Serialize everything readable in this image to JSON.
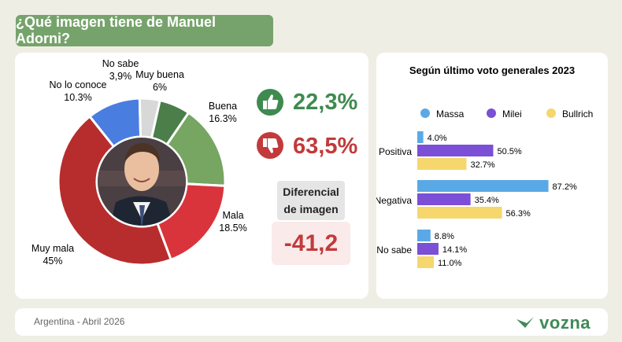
{
  "header": {
    "title": "¿Qué imagen tiene de Manuel Adorni?",
    "color": "#76a36b"
  },
  "chart_data": [
    {
      "type": "pie",
      "title": "¿Qué imagen tiene de Manuel Adorni?",
      "categories": [
        "Muy buena",
        "Buena",
        "Mala",
        "Muy mala",
        "No lo conoce",
        "No sabe"
      ],
      "values": [
        6,
        16.3,
        18.5,
        45,
        10.3,
        3.9
      ],
      "value_labels": [
        "6%",
        "16.3%",
        "18.5%",
        "45%",
        "10.3%",
        "3,9%"
      ],
      "colors": [
        "#4c7e4a",
        "#76a662",
        "#d9343c",
        "#b72d2d",
        "#4a7de0",
        "#d8d8d8"
      ]
    },
    {
      "type": "bar",
      "orientation": "horizontal",
      "title": "Según último voto generales 2023",
      "categories": [
        "Positiva",
        "Negativa",
        "No sabe"
      ],
      "series": [
        {
          "name": "Massa",
          "values": [
            4.0,
            87.2,
            8.8
          ],
          "labels": [
            "4.0%",
            "87.2%",
            "8.8%"
          ],
          "color": "#5aa9e6"
        },
        {
          "name": "Milei",
          "values": [
            50.5,
            35.4,
            14.1
          ],
          "labels": [
            "50.5%",
            "35.4%",
            "14.1%"
          ],
          "color": "#7b4fd6"
        },
        {
          "name": "Bullrich",
          "values": [
            32.7,
            56.3,
            11.0
          ],
          "labels": [
            "32.7%",
            "56.3%",
            "11.0%"
          ],
          "color": "#f5d76e"
        }
      ],
      "xlim": [
        0,
        100
      ]
    }
  ],
  "summary": {
    "positive_value": "22,3%",
    "positive_color": "#3f8a4f",
    "negative_value": "63,5%",
    "negative_color": "#c23a3a",
    "diff_label": "Diferencial de imagen",
    "diff_value": "-41,2"
  },
  "footer": {
    "country": "Argentina",
    "date": "Abril 2026",
    "logo": "vozna"
  }
}
